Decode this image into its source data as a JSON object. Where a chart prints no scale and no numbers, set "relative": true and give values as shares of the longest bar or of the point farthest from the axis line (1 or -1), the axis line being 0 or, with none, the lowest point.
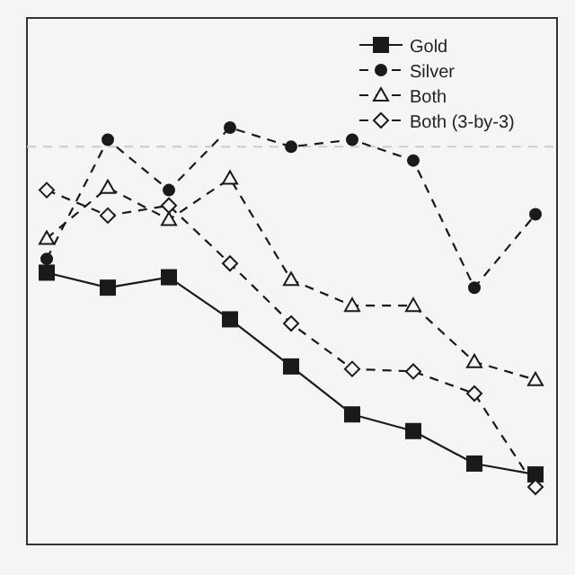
{
  "chart_data": {
    "type": "line",
    "relative": true,
    "categories": [
      null,
      null,
      null,
      null,
      null,
      null,
      null,
      null,
      null
    ],
    "series": [
      {
        "name": "Gold",
        "color": "#1a1a1a",
        "marker": "square",
        "line_style": "solid",
        "values": [
          0.652,
          0.616,
          0.641,
          0.54,
          0.427,
          0.312,
          0.272,
          0.194,
          0.168
        ]
      },
      {
        "name": "Silver",
        "color": "#1a1a1a",
        "marker": "circle",
        "line_style": "dashed",
        "values": [
          0.685,
          0.971,
          0.85,
          1,
          0.954,
          0.971,
          0.921,
          0.616,
          0.792
        ]
      },
      {
        "name": "Both",
        "color": "#1a1a1a",
        "marker": "triangle",
        "line_style": "dashed",
        "values": [
          0.734,
          0.856,
          0.779,
          0.878,
          0.635,
          0.573,
          0.573,
          0.438,
          0.395
        ]
      },
      {
        "name": "Both (3-by-3)",
        "color": "#1a1a1a",
        "marker": "diamond",
        "line_style": "dashed",
        "values": [
          0.85,
          0.789,
          0.813,
          0.674,
          0.53,
          0.421,
          0.415,
          0.362,
          0.138
        ]
      }
    ],
    "ref_lines": [
      {
        "axis": "y",
        "value": 0.954,
        "color": "#cccccc",
        "line_style": "dashed"
      }
    ],
    "legend": "top right",
    "grid": false
  }
}
